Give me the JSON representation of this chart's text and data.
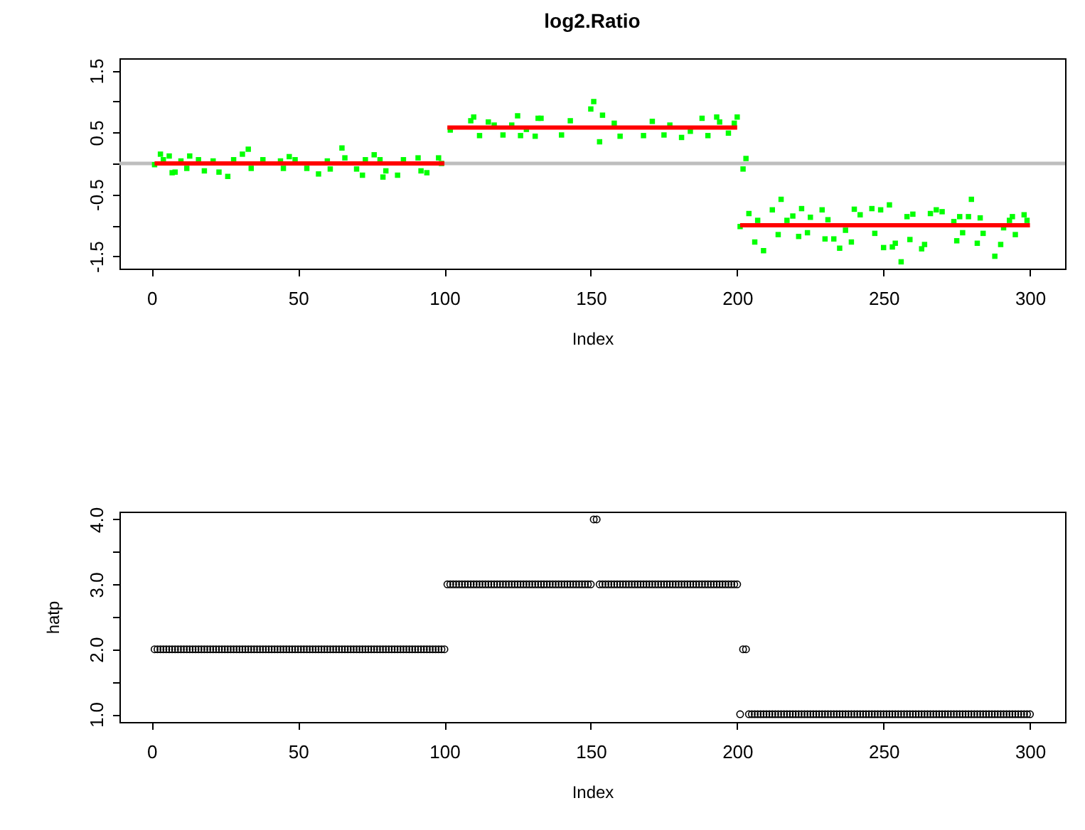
{
  "chart_data": [
    {
      "type": "scatter",
      "title": "log2.Ratio",
      "xlabel": "Index",
      "marker": "square",
      "xlim": [
        -11,
        312
      ],
      "ylim": [
        -1.7,
        1.7
      ],
      "xticks": [
        0,
        50,
        100,
        150,
        200,
        250,
        300
      ],
      "yticks": [
        -1.5,
        {
          "value": -1,
          "label": null
        },
        -0.5,
        {
          "value": 0,
          "label": null
        },
        0.5,
        {
          "value": 1,
          "label": null
        },
        1.5
      ],
      "ref_lines": [
        {
          "axis": "y",
          "value": 0,
          "color": "#bebebe"
        }
      ],
      "series": [
        {
          "color": "#00ff00",
          "x": [
            1,
            3,
            4,
            6,
            7,
            8,
            10,
            12,
            13,
            16,
            18,
            21,
            23,
            26,
            28,
            31,
            33,
            34,
            38,
            44,
            45,
            47,
            49,
            53,
            57,
            60,
            61,
            65,
            66,
            70,
            72,
            73,
            76,
            78,
            79,
            80,
            84,
            86,
            91,
            92,
            94,
            98,
            99,
            102,
            109,
            110,
            112,
            115,
            117,
            120,
            123,
            125,
            126,
            128,
            131,
            132,
            133,
            140,
            143,
            150,
            151,
            153,
            154,
            158,
            160,
            166,
            168,
            171,
            175,
            177,
            181,
            184,
            188,
            190,
            193,
            194,
            197,
            199,
            200,
            201,
            202,
            203,
            204,
            206,
            207,
            209,
            212,
            214,
            215,
            217,
            219,
            221,
            222,
            224,
            225,
            229,
            230,
            231,
            233,
            235,
            237,
            239,
            240,
            242,
            246,
            247,
            249,
            250,
            252,
            253,
            254,
            256,
            258,
            259,
            260,
            263,
            264,
            266,
            268,
            270,
            274,
            275,
            276,
            277,
            279,
            280,
            282,
            283,
            284,
            288,
            290,
            291,
            293,
            294,
            295,
            298,
            299
          ],
          "values": [
            -0.02,
            0.15,
            0.06,
            0.12,
            -0.15,
            -0.14,
            0.04,
            -0.08,
            0.12,
            0.06,
            -0.12,
            0.04,
            -0.14,
            -0.21,
            0.06,
            0.15,
            0.23,
            -0.08,
            0.06,
            0.04,
            -0.08,
            0.11,
            0.06,
            -0.08,
            -0.17,
            0.04,
            -0.09,
            0.25,
            0.09,
            -0.09,
            -0.19,
            0.06,
            0.14,
            0.06,
            -0.22,
            -0.12,
            -0.19,
            0.06,
            0.09,
            -0.12,
            -0.15,
            0.09,
            0.0,
            0.54,
            0.69,
            0.75,
            0.45,
            0.67,
            0.62,
            0.46,
            0.62,
            0.77,
            0.45,
            0.55,
            0.44,
            0.73,
            0.73,
            0.46,
            0.69,
            0.88,
            1.0,
            0.35,
            0.78,
            0.65,
            0.44,
            null,
            0.45,
            0.68,
            0.46,
            0.62,
            0.42,
            0.52,
            0.73,
            0.45,
            0.75,
            0.67,
            0.49,
            0.65,
            0.75,
            -1.02,
            -0.09,
            0.08,
            -0.81,
            -1.27,
            -0.92,
            -1.41,
            -0.75,
            -1.15,
            -0.58,
            -0.92,
            -0.85,
            -1.18,
            -0.73,
            -1.12,
            -0.87,
            -0.75,
            -1.22,
            -0.91,
            -1.22,
            -1.37,
            -1.08,
            -1.27,
            -0.74,
            -0.83,
            -0.73,
            -1.13,
            -0.75,
            -1.36,
            -0.67,
            -1.35,
            -1.29,
            -1.59,
            -0.86,
            -1.23,
            -0.82,
            -1.38,
            -1.31,
            -0.81,
            -0.75,
            -0.78,
            -0.94,
            -1.25,
            -0.86,
            -1.12,
            -0.86,
            -0.58,
            -1.29,
            -0.88,
            -1.13,
            -1.5,
            -1.31,
            -1.04,
            -0.92,
            -0.86,
            -1.15,
            -0.83,
            -0.92
          ]
        },
        {
          "type": "line",
          "marker": "none",
          "color": "#ff0000",
          "x": [
            1,
            100
          ],
          "values": [
            0.0,
            0.0
          ]
        },
        {
          "type": "line",
          "marker": "none",
          "color": "#ff0000",
          "x": [
            101,
            200
          ],
          "values": [
            0.58,
            0.58
          ]
        },
        {
          "type": "line",
          "marker": "none",
          "color": "#ff0000",
          "x": [
            201,
            300
          ],
          "values": [
            -1.0,
            -1.0
          ]
        }
      ]
    },
    {
      "type": "scatter",
      "xlabel": "Index",
      "ylabel": "hatp",
      "marker": "circle",
      "xlim": [
        -11,
        312
      ],
      "ylim": [
        0.88,
        4.12
      ],
      "xticks": [
        0,
        50,
        100,
        150,
        200,
        250,
        300
      ],
      "yticks": [
        {
          "value": 1,
          "label": "1.0"
        },
        {
          "value": 1.5,
          "label": null
        },
        {
          "value": 2,
          "label": "2.0"
        },
        {
          "value": 2.5,
          "label": null
        },
        {
          "value": 3,
          "label": "3.0"
        },
        {
          "value": 3.5,
          "label": null
        },
        {
          "value": 4,
          "label": "4.0"
        }
      ],
      "series": [
        {
          "color": "#000000",
          "x": [
            1,
            2,
            3,
            4,
            5,
            6,
            7,
            8,
            9,
            10,
            11,
            12,
            13,
            14,
            15,
            16,
            17,
            18,
            19,
            20,
            21,
            22,
            23,
            24,
            25,
            26,
            27,
            28,
            29,
            30,
            31,
            32,
            33,
            34,
            35,
            36,
            37,
            38,
            39,
            40,
            41,
            42,
            43,
            44,
            45,
            46,
            47,
            48,
            49,
            50,
            51,
            52,
            53,
            54,
            55,
            56,
            57,
            58,
            59,
            60,
            61,
            62,
            63,
            64,
            65,
            66,
            67,
            68,
            69,
            70,
            71,
            72,
            73,
            74,
            75,
            76,
            77,
            78,
            79,
            80,
            81,
            82,
            83,
            84,
            85,
            86,
            87,
            88,
            89,
            90,
            91,
            92,
            93,
            94,
            95,
            96,
            97,
            98,
            99,
            100,
            101,
            102,
            103,
            104,
            105,
            106,
            107,
            108,
            109,
            110,
            111,
            112,
            113,
            114,
            115,
            116,
            117,
            118,
            119,
            120,
            121,
            122,
            123,
            124,
            125,
            126,
            127,
            128,
            129,
            130,
            131,
            132,
            133,
            134,
            135,
            136,
            137,
            138,
            139,
            140,
            141,
            142,
            143,
            144,
            145,
            146,
            147,
            148,
            149,
            150,
            151,
            152,
            153,
            154,
            155,
            156,
            157,
            158,
            159,
            160,
            161,
            162,
            163,
            164,
            165,
            166,
            167,
            168,
            169,
            170,
            171,
            172,
            173,
            174,
            175,
            176,
            177,
            178,
            179,
            180,
            181,
            182,
            183,
            184,
            185,
            186,
            187,
            188,
            189,
            190,
            191,
            192,
            193,
            194,
            195,
            196,
            197,
            198,
            199,
            200,
            201,
            202,
            203,
            204,
            205,
            206,
            207,
            208,
            209,
            210,
            211,
            212,
            213,
            214,
            215,
            216,
            217,
            218,
            219,
            220,
            221,
            222,
            223,
            224,
            225,
            226,
            227,
            228,
            229,
            230,
            231,
            232,
            233,
            234,
            235,
            236,
            237,
            238,
            239,
            240,
            241,
            242,
            243,
            244,
            245,
            246,
            247,
            248,
            249,
            250,
            251,
            252,
            253,
            254,
            255,
            256,
            257,
            258,
            259,
            260,
            261,
            262,
            263,
            264,
            265,
            266,
            267,
            268,
            269,
            270,
            271,
            272,
            273,
            274,
            275,
            276,
            277,
            278,
            279,
            280,
            281,
            282,
            283,
            284,
            285,
            286,
            287,
            288,
            289,
            290,
            291,
            292,
            293,
            294,
            295,
            296,
            297,
            298,
            299,
            300
          ],
          "values": [
            2,
            2,
            2,
            2,
            2,
            2,
            2,
            2,
            2,
            2,
            2,
            2,
            2,
            2,
            2,
            2,
            2,
            2,
            2,
            2,
            2,
            2,
            2,
            2,
            2,
            2,
            2,
            2,
            2,
            2,
            2,
            2,
            2,
            2,
            2,
            2,
            2,
            2,
            2,
            2,
            2,
            2,
            2,
            2,
            2,
            2,
            2,
            2,
            2,
            2,
            2,
            2,
            2,
            2,
            2,
            2,
            2,
            2,
            2,
            2,
            2,
            2,
            2,
            2,
            2,
            2,
            2,
            2,
            2,
            2,
            2,
            2,
            2,
            2,
            2,
            2,
            2,
            2,
            2,
            2,
            2,
            2,
            2,
            2,
            2,
            2,
            2,
            2,
            2,
            2,
            2,
            2,
            2,
            2,
            2,
            2,
            2,
            2,
            2,
            2,
            3,
            3,
            3,
            3,
            3,
            3,
            3,
            3,
            3,
            3,
            3,
            3,
            3,
            3,
            3,
            3,
            3,
            3,
            3,
            3,
            3,
            3,
            3,
            3,
            3,
            3,
            3,
            3,
            3,
            3,
            3,
            3,
            3,
            3,
            3,
            3,
            3,
            3,
            3,
            3,
            3,
            3,
            3,
            3,
            3,
            3,
            3,
            3,
            3,
            3,
            4,
            4,
            3,
            3,
            3,
            3,
            3,
            3,
            3,
            3,
            3,
            3,
            3,
            3,
            3,
            3,
            3,
            3,
            3,
            3,
            3,
            3,
            3,
            3,
            3,
            3,
            3,
            3,
            3,
            3,
            3,
            3,
            3,
            3,
            3,
            3,
            3,
            3,
            3,
            3,
            3,
            3,
            3,
            3,
            3,
            3,
            3,
            3,
            3,
            3,
            1,
            2,
            2,
            1,
            1,
            1,
            1,
            1,
            1,
            1,
            1,
            1,
            1,
            1,
            1,
            1,
            1,
            1,
            1,
            1,
            1,
            1,
            1,
            1,
            1,
            1,
            1,
            1,
            1,
            1,
            1,
            1,
            1,
            1,
            1,
            1,
            1,
            1,
            1,
            1,
            1,
            1,
            1,
            1,
            1,
            1,
            1,
            1,
            1,
            1,
            1,
            1,
            1,
            1,
            1,
            1,
            1,
            1,
            1,
            1,
            1,
            1,
            1,
            1,
            1,
            1,
            1,
            1,
            1,
            1,
            1,
            1,
            1,
            1,
            1,
            1,
            1,
            1,
            1,
            1,
            1,
            1,
            1,
            1,
            1,
            1,
            1,
            1,
            1,
            1,
            1,
            1,
            1,
            1,
            1,
            1,
            1,
            1,
            1,
            1
          ]
        }
      ]
    }
  ]
}
